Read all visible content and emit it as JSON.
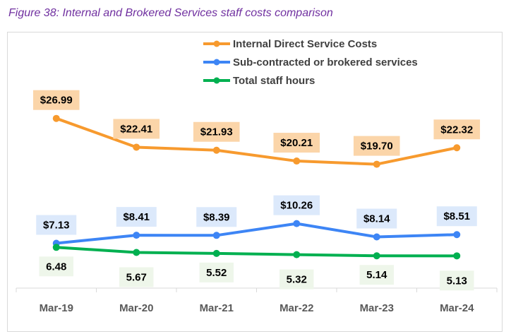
{
  "chart_data": {
    "type": "line",
    "title": "Figure 38: Internal and Brokered Services staff costs comparison",
    "categories": [
      "Mar-19",
      "Mar-20",
      "Mar-21",
      "Mar-22",
      "Mar-23",
      "Mar-24"
    ],
    "series": [
      {
        "name": "Internal Direct Service Costs",
        "color": "#F79A2E",
        "label_bg": "#FBD5A9",
        "labels": [
          "$26.99",
          "$22.41",
          "$21.93",
          "$20.21",
          "$19.70",
          "$22.32"
        ],
        "values": [
          26.99,
          22.41,
          21.93,
          20.21,
          19.7,
          22.32
        ],
        "label_pos": "above"
      },
      {
        "name": "Sub-contracted or brokered services",
        "color": "#3D85F5",
        "label_bg": "#DCE9FB",
        "labels": [
          "$7.13",
          "$8.41",
          "$8.39",
          "$10.26",
          "$8.14",
          "$8.51"
        ],
        "values": [
          7.13,
          8.41,
          8.39,
          10.26,
          8.14,
          8.51
        ],
        "label_pos": "above"
      },
      {
        "name": "Total staff hours",
        "color": "#00B050",
        "label_bg": "#EEF6EA",
        "labels": [
          "6.48",
          "5.67",
          "5.52",
          "5.32",
          "5.14",
          "5.13"
        ],
        "values": [
          6.48,
          5.67,
          5.52,
          5.32,
          5.14,
          5.13
        ],
        "label_pos": "below"
      }
    ],
    "ylim": [
      0,
      30
    ],
    "grid": false,
    "legend": "top-center",
    "xlabel": "",
    "ylabel": ""
  }
}
